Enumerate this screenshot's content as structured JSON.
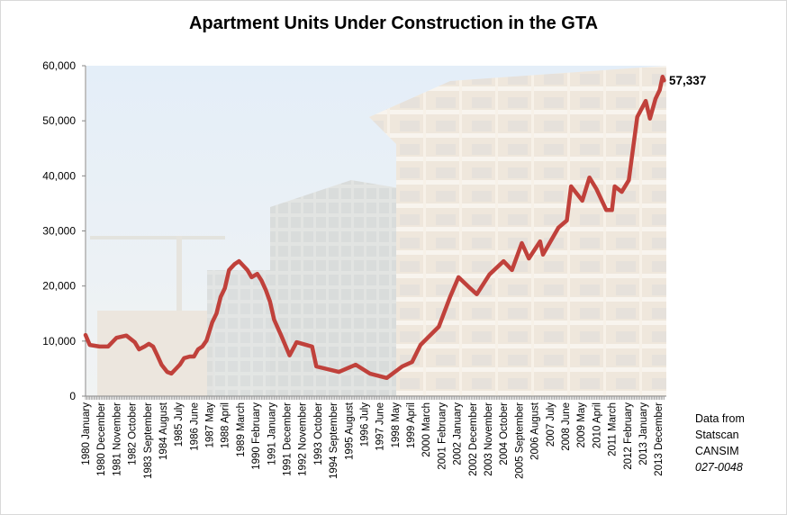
{
  "chart_data": {
    "type": "line",
    "title": "Apartment Units Under Construction in the GTA",
    "xlabel": "",
    "ylabel": "",
    "ylim": [
      0,
      60000
    ],
    "yticks": [
      "0",
      "10,000",
      "20,000",
      "30,000",
      "40,000",
      "50,000",
      "60,000"
    ],
    "xtick_labels": [
      "1980 January",
      "1980 December",
      "1981 November",
      "1982 October",
      "1983 September",
      "1984 August",
      "1985 July",
      "1986 June",
      "1987 May",
      "1988 April",
      "1989 March",
      "1990 February",
      "1991 January",
      "1991 December",
      "1992 November",
      "1993 October",
      "1994 September",
      "1995 August",
      "1996 July",
      "1997 June",
      "1998 May",
      "1999 April",
      "2000 March",
      "2001 February",
      "2002 January",
      "2002 December",
      "2003 November",
      "2004 October",
      "2005 September",
      "2006 August",
      "2007 July",
      "2008 June",
      "2009 May",
      "2010 April",
      "2011 March",
      "2012 February",
      "2013 January",
      "2013 December"
    ],
    "grid": false,
    "line_color": "#c0413b",
    "end_label": "57,337",
    "points": [
      [
        "1980-01",
        11100
      ],
      [
        "1980-04",
        9300
      ],
      [
        "1980-11",
        9000
      ],
      [
        "1981-05",
        9000
      ],
      [
        "1981-11",
        10600
      ],
      [
        "1982-06",
        11000
      ],
      [
        "1982-12",
        9800
      ],
      [
        "1983-03",
        8500
      ],
      [
        "1983-07",
        9000
      ],
      [
        "1983-10",
        9500
      ],
      [
        "1984-01",
        9000
      ],
      [
        "1984-04",
        7400
      ],
      [
        "1984-07",
        5700
      ],
      [
        "1984-11",
        4400
      ],
      [
        "1985-02",
        4100
      ],
      [
        "1985-05",
        4900
      ],
      [
        "1985-08",
        5700
      ],
      [
        "1985-11",
        6900
      ],
      [
        "1986-03",
        7200
      ],
      [
        "1986-06",
        7200
      ],
      [
        "1986-09",
        8500
      ],
      [
        "1986-12",
        9000
      ],
      [
        "1987-03",
        10100
      ],
      [
        "1987-07",
        13400
      ],
      [
        "1987-10",
        15000
      ],
      [
        "1988-01",
        18000
      ],
      [
        "1988-04",
        19600
      ],
      [
        "1988-07",
        22900
      ],
      [
        "1988-11",
        24000
      ],
      [
        "1989-02",
        24500
      ],
      [
        "1989-05",
        23700
      ],
      [
        "1989-08",
        22900
      ],
      [
        "1989-11",
        21600
      ],
      [
        "1990-03",
        22200
      ],
      [
        "1990-06",
        21000
      ],
      [
        "1990-09",
        19300
      ],
      [
        "1990-12",
        17200
      ],
      [
        "1991-03",
        13900
      ],
      [
        "1991-08",
        11000
      ],
      [
        "1992-02",
        7400
      ],
      [
        "1992-07",
        9800
      ],
      [
        "1993-06",
        9000
      ],
      [
        "1993-09",
        5400
      ],
      [
        "1995-01",
        4400
      ],
      [
        "1996-01",
        5700
      ],
      [
        "1996-11",
        4100
      ],
      [
        "1997-11",
        3300
      ],
      [
        "1998-10",
        5400
      ],
      [
        "1999-05",
        6200
      ],
      [
        "1999-11",
        9300
      ],
      [
        "2000-12",
        12600
      ],
      [
        "2001-08",
        18000
      ],
      [
        "2002-02",
        21600
      ],
      [
        "2002-09",
        19900
      ],
      [
        "2003-03",
        18500
      ],
      [
        "2003-12",
        22100
      ],
      [
        "2004-10",
        24500
      ],
      [
        "2005-04",
        22900
      ],
      [
        "2005-11",
        27800
      ],
      [
        "2006-04",
        25000
      ],
      [
        "2006-12",
        28100
      ],
      [
        "2007-02",
        25700
      ],
      [
        "2008-01",
        30600
      ],
      [
        "2008-07",
        31900
      ],
      [
        "2008-10",
        38100
      ],
      [
        "2009-06",
        35500
      ],
      [
        "2009-11",
        39700
      ],
      [
        "2010-04",
        37600
      ],
      [
        "2010-11",
        33800
      ],
      [
        "2011-03",
        33800
      ],
      [
        "2011-05",
        38100
      ],
      [
        "2011-10",
        37100
      ],
      [
        "2012-03",
        39200
      ],
      [
        "2012-05",
        43000
      ],
      [
        "2012-09",
        50700
      ],
      [
        "2013-03",
        53600
      ],
      [
        "2013-06",
        50400
      ],
      [
        "2013-10",
        54000
      ],
      [
        "2014-01",
        55600
      ],
      [
        "2014-03",
        58000
      ],
      [
        "2014-04",
        57337
      ]
    ]
  },
  "note": {
    "line1": "Data from",
    "line2": "Statscan",
    "line3": "CANSIM",
    "line4": "027-0048"
  }
}
